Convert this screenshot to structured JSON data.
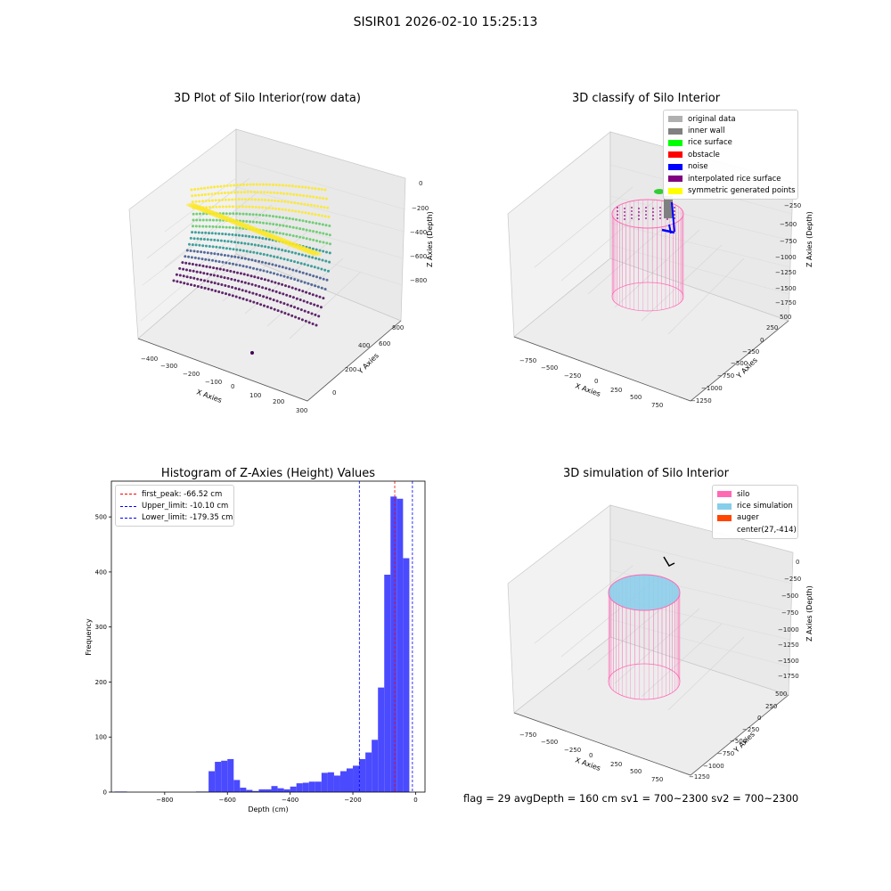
{
  "figure": {
    "suptitle": "SISIR01 2026-02-10 15:25:13",
    "footer": "flag = 29  avgDepth = 160 cm  sv1 = 700~2300  sv2 = 700~2300"
  },
  "colors": {
    "viridis": [
      "#440154",
      "#3b528b",
      "#21918c",
      "#5ec962",
      "#fde725"
    ],
    "classes": {
      "original data": "#b0b0b0",
      "inner wall": "#808080",
      "rice surface": "#00ff00",
      "obstacle": "#ff0000",
      "noise": "#0000ff",
      "interpolated rice surface": "#800080",
      "symmetric generated points": "#ffff00"
    },
    "silo": "#ff69b4",
    "rice_simulation": "#87ceeb",
    "auger": "#ff4500",
    "histogram_bar": "#4a4aff",
    "first_peak_line": "#ff0000",
    "limit_line": "#0000ff"
  },
  "chart_data": [
    {
      "type": "scatter",
      "projection": "3d",
      "title": "3D Plot of Silo Interior(row data)",
      "xlabel": "X Axies",
      "ylabel": "Y Axies",
      "zlabel": "Z Axies (Depth)",
      "xticks": [
        "−400",
        "−300",
        "−200",
        "−100",
        "0",
        "100",
        "200",
        "300"
      ],
      "yticks": [
        "0",
        "200",
        "400",
        "600",
        "800"
      ],
      "zticks": [
        "0",
        "−200",
        "−400",
        "−600",
        "−800"
      ],
      "colormap": "viridis"
    },
    {
      "type": "scatter",
      "projection": "3d",
      "title": "3D classify of Silo Interior",
      "zlabel": "Z Axies (Depth)",
      "xlabel": "X Axies",
      "ylabel": "Y Axies",
      "xticks": [
        "−750",
        "−500",
        "−250",
        "0",
        "250",
        "500",
        "750"
      ],
      "yticks": [
        "500",
        "250",
        "0",
        "−250",
        "−500",
        "−750",
        "−1000",
        "−1250"
      ],
      "zticks": [
        "−250",
        "−500",
        "−750",
        "−1000",
        "−1250",
        "−1500",
        "−1750"
      ],
      "legend": [
        "original data",
        "inner wall",
        "rice surface",
        "obstacle",
        "noise",
        "interpolated rice surface",
        "symmetric generated points"
      ],
      "legend_position": "top-right"
    },
    {
      "type": "bar",
      "title": "Histogram of Z-Axies (Height) Values",
      "xlabel": "Depth (cm)",
      "ylabel": "Frequency",
      "xlim": [
        -970,
        30
      ],
      "ylim": [
        0,
        565
      ],
      "xticks": [
        -800,
        -600,
        -400,
        -200,
        0
      ],
      "yticks": [
        0,
        100,
        200,
        300,
        400,
        500
      ],
      "bin_width": 20,
      "bins": [
        {
          "x": -950,
          "value": 1
        },
        {
          "x": -930,
          "value": 1
        },
        {
          "x": -690,
          "value": 1
        },
        {
          "x": -670,
          "value": 1
        },
        {
          "x": -650,
          "value": 38
        },
        {
          "x": -630,
          "value": 55
        },
        {
          "x": -610,
          "value": 57
        },
        {
          "x": -590,
          "value": 60
        },
        {
          "x": -570,
          "value": 22
        },
        {
          "x": -550,
          "value": 8
        },
        {
          "x": -530,
          "value": 4
        },
        {
          "x": -510,
          "value": 2
        },
        {
          "x": -490,
          "value": 5
        },
        {
          "x": -470,
          "value": 5
        },
        {
          "x": -450,
          "value": 11
        },
        {
          "x": -430,
          "value": 7
        },
        {
          "x": -410,
          "value": 5
        },
        {
          "x": -390,
          "value": 10
        },
        {
          "x": -370,
          "value": 16
        },
        {
          "x": -350,
          "value": 17
        },
        {
          "x": -330,
          "value": 19
        },
        {
          "x": -310,
          "value": 19
        },
        {
          "x": -290,
          "value": 35
        },
        {
          "x": -270,
          "value": 36
        },
        {
          "x": -250,
          "value": 30
        },
        {
          "x": -230,
          "value": 38
        },
        {
          "x": -210,
          "value": 43
        },
        {
          "x": -190,
          "value": 48
        },
        {
          "x": -170,
          "value": 60
        },
        {
          "x": -150,
          "value": 72
        },
        {
          "x": -130,
          "value": 95
        },
        {
          "x": -110,
          "value": 190
        },
        {
          "x": -90,
          "value": 395
        },
        {
          "x": -70,
          "value": 537
        },
        {
          "x": -50,
          "value": 533
        },
        {
          "x": -30,
          "value": 425
        }
      ],
      "vlines": [
        {
          "label": "first_peak: -66.52 cm",
          "x": -66.52,
          "color": "#ff0000"
        },
        {
          "label": "Upper_limit: -10.10 cm",
          "x": -10.1,
          "color": "#0000ff"
        },
        {
          "label": "Lower_limit: -179.35 cm",
          "x": -179.35,
          "color": "#0000ff"
        }
      ],
      "legend_position": "top-left"
    },
    {
      "type": "scatter",
      "projection": "3d",
      "title": "3D simulation of Silo Interior",
      "xlabel": "X Axies",
      "ylabel": "Y Axies",
      "zlabel": "Z Axies (Depth)",
      "xticks": [
        "−750",
        "−500",
        "−250",
        "0",
        "250",
        "500",
        "750"
      ],
      "yticks": [
        "500",
        "250",
        "0",
        "−250",
        "−500",
        "−750",
        "−1000",
        "−1250"
      ],
      "zticks": [
        "0",
        "−250",
        "−500",
        "−750",
        "−1000",
        "−1250",
        "−1500",
        "−1750"
      ],
      "legend": [
        "silo",
        "rice simulation",
        "auger",
        "center(27,-414)"
      ],
      "legend_position": "top-right"
    }
  ]
}
